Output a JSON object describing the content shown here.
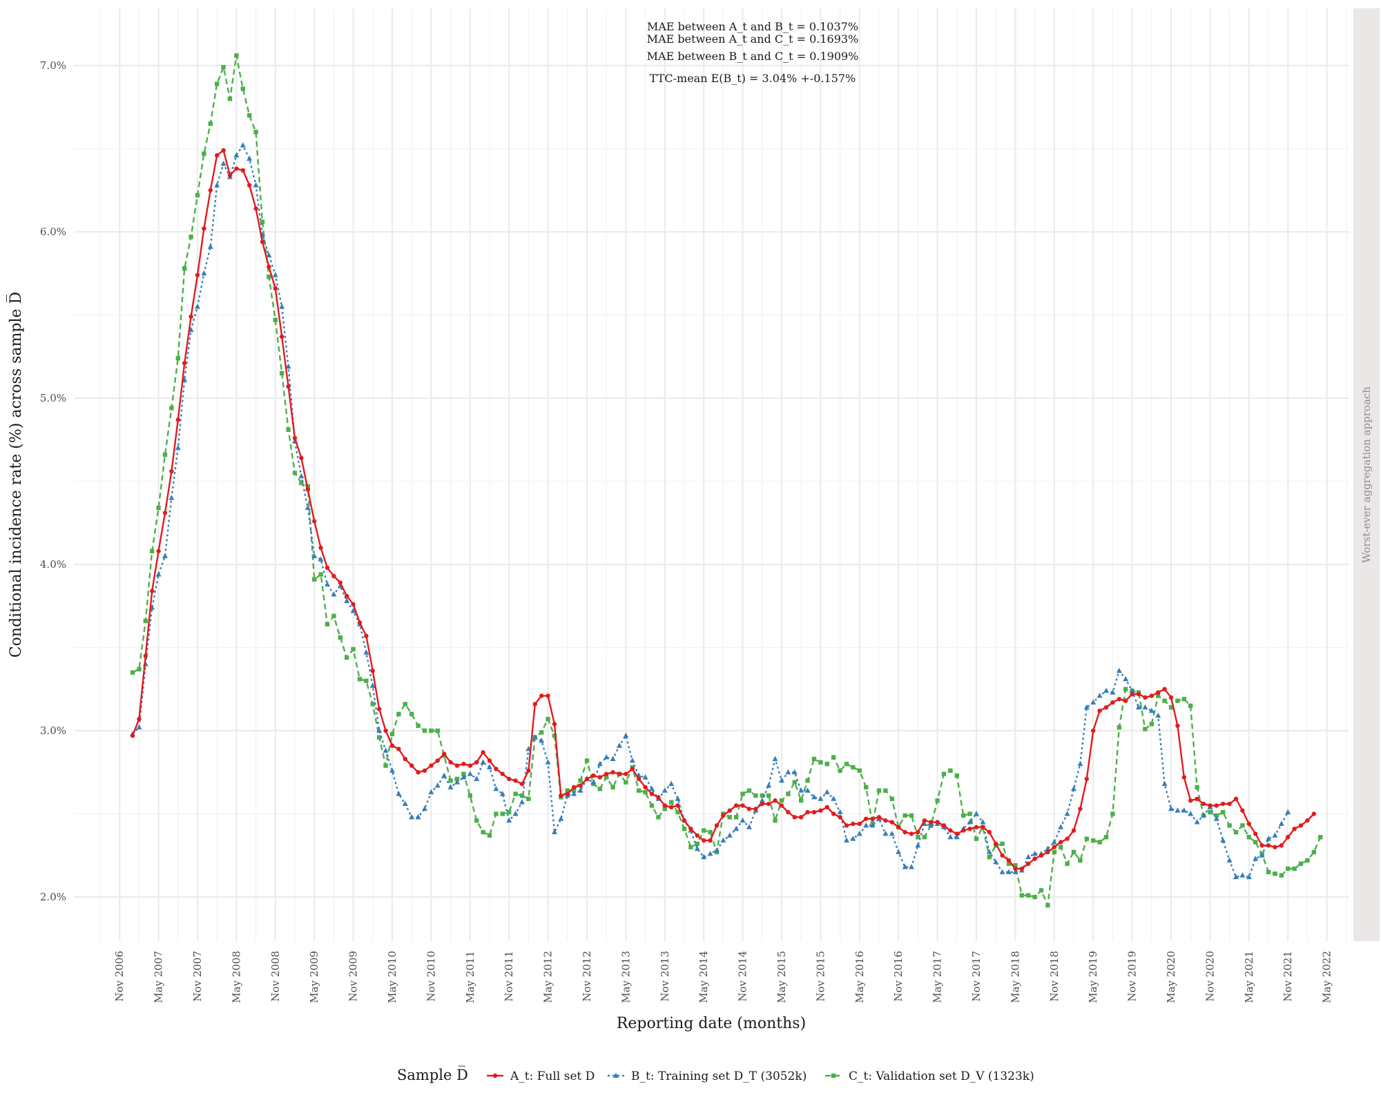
{
  "chart_data": {
    "type": "line",
    "title": "",
    "xlabel": "Reporting date (months)",
    "ylabel": "Conditional incidence rate (%) across sample D̅",
    "x_tick_labels": [
      "Nov 2006",
      "May 2007",
      "Nov 2007",
      "May 2008",
      "Nov 2008",
      "May 2009",
      "Nov 2009",
      "May 2010",
      "Nov 2010",
      "May 2011",
      "Nov 2011",
      "May 2012",
      "Nov 2012",
      "May 2013",
      "Nov 2013",
      "May 2014",
      "Nov 2014",
      "May 2015",
      "Nov 2015",
      "May 2016",
      "Nov 2016",
      "May 2017",
      "Nov 2017",
      "May 2018",
      "Nov 2018",
      "May 2019",
      "Nov 2019",
      "May 2020",
      "Nov 2020",
      "May 2021",
      "Nov 2021",
      "May 2022"
    ],
    "x_start": "2007-01",
    "x_step": "1 month",
    "y_tick_labels": [
      "2.0%",
      "3.0%",
      "4.0%",
      "5.0%",
      "6.0%",
      "7.0%"
    ],
    "ylim": [
      1.7,
      7.3
    ],
    "grid": true,
    "facet_label": "Worst-ever aggregation approach",
    "annotations": [
      "MAE between A_t and B_t = 0.1037%",
      "MAE between A_t and C_t = 0.1693%",
      "MAE between B_t and C_t = 0.1909%",
      "TTC-mean E(B_t) = 3.04% +-0.157%"
    ],
    "legend": {
      "position": "bottom",
      "title": "Sample D̅",
      "entries": [
        "A_t: Full set D",
        "B_t: Training set D_T (3052k)",
        "C_t: Validation set D_V (1323k)"
      ]
    },
    "series": [
      {
        "name": "A_t: Full set D",
        "color": "#e41a1c",
        "marker": "circle",
        "dash": "solid",
        "values": [
          2.97,
          3.07,
          3.45,
          3.84,
          4.08,
          4.31,
          4.56,
          4.87,
          5.21,
          5.49,
          5.74,
          6.02,
          6.25,
          6.46,
          6.49,
          6.34,
          6.38,
          6.37,
          6.28,
          6.14,
          5.94,
          5.79,
          5.66,
          5.37,
          5.07,
          4.76,
          4.64,
          4.45,
          4.26,
          4.1,
          3.98,
          3.93,
          3.89,
          3.81,
          3.76,
          3.65,
          3.57,
          3.36,
          3.13,
          3.0,
          2.91,
          2.89,
          2.83,
          2.79,
          2.75,
          2.76,
          2.79,
          2.82,
          2.86,
          2.81,
          2.79,
          2.8,
          2.79,
          2.81,
          2.87,
          2.82,
          2.77,
          2.74,
          2.71,
          2.7,
          2.68,
          2.76,
          3.16,
          3.21,
          3.21,
          3.04,
          2.61,
          2.62,
          2.66,
          2.67,
          2.71,
          2.73,
          2.72,
          2.74,
          2.75,
          2.74,
          2.74,
          2.77,
          2.71,
          2.66,
          2.62,
          2.6,
          2.55,
          2.54,
          2.55,
          2.46,
          2.41,
          2.37,
          2.34,
          2.34,
          2.43,
          2.49,
          2.52,
          2.55,
          2.55,
          2.53,
          2.53,
          2.56,
          2.56,
          2.58,
          2.55,
          2.51,
          2.48,
          2.48,
          2.51,
          2.51,
          2.52,
          2.54,
          2.5,
          2.48,
          2.43,
          2.44,
          2.44,
          2.47,
          2.47,
          2.48,
          2.46,
          2.45,
          2.42,
          2.39,
          2.38,
          2.39,
          2.46,
          2.45,
          2.45,
          2.43,
          2.4,
          2.38,
          2.4,
          2.41,
          2.42,
          2.42,
          2.39,
          2.32,
          2.25,
          2.22,
          2.17,
          2.17,
          2.2,
          2.23,
          2.25,
          2.27,
          2.3,
          2.33,
          2.35,
          2.4,
          2.53,
          2.71,
          3.0,
          3.12,
          3.14,
          3.17,
          3.19,
          3.18,
          3.22,
          3.22,
          3.2,
          3.21,
          3.23,
          3.25,
          3.2,
          3.03,
          2.72,
          2.58,
          2.59,
          2.56,
          2.55,
          2.55,
          2.56,
          2.56,
          2.59,
          2.52,
          2.44,
          2.38,
          2.31,
          2.31,
          2.3,
          2.31,
          2.36,
          2.41,
          2.43,
          2.46,
          2.5
        ]
      },
      {
        "name": "B_t: Training set D_T (3052k)",
        "color": "#377eb8",
        "marker": "triangle",
        "dash": "dotted",
        "values": [
          2.98,
          3.02,
          3.4,
          3.74,
          3.94,
          4.05,
          4.4,
          4.7,
          5.11,
          5.41,
          5.55,
          5.75,
          5.91,
          6.28,
          6.41,
          6.33,
          6.46,
          6.52,
          6.44,
          6.28,
          5.98,
          5.86,
          5.74,
          5.55,
          5.19,
          4.74,
          4.53,
          4.34,
          4.05,
          4.03,
          3.88,
          3.82,
          3.87,
          3.78,
          3.72,
          3.64,
          3.47,
          3.27,
          3.0,
          2.88,
          2.76,
          2.62,
          2.56,
          2.48,
          2.48,
          2.53,
          2.63,
          2.67,
          2.73,
          2.66,
          2.69,
          2.72,
          2.74,
          2.71,
          2.81,
          2.78,
          2.65,
          2.62,
          2.46,
          2.5,
          2.57,
          2.89,
          2.96,
          2.94,
          2.81,
          2.39,
          2.47,
          2.61,
          2.62,
          2.64,
          2.71,
          2.69,
          2.8,
          2.84,
          2.83,
          2.91,
          2.97,
          2.82,
          2.73,
          2.72,
          2.65,
          2.59,
          2.64,
          2.68,
          2.59,
          2.46,
          2.4,
          2.29,
          2.24,
          2.26,
          2.28,
          2.34,
          2.37,
          2.41,
          2.46,
          2.42,
          2.52,
          2.58,
          2.67,
          2.83,
          2.7,
          2.75,
          2.75,
          2.64,
          2.64,
          2.6,
          2.59,
          2.63,
          2.59,
          2.51,
          2.34,
          2.35,
          2.38,
          2.43,
          2.43,
          2.47,
          2.38,
          2.38,
          2.27,
          2.18,
          2.18,
          2.31,
          2.44,
          2.43,
          2.44,
          2.42,
          2.36,
          2.36,
          2.41,
          2.45,
          2.5,
          2.45,
          2.27,
          2.21,
          2.15,
          2.15,
          2.15,
          2.16,
          2.24,
          2.26,
          2.26,
          2.29,
          2.33,
          2.42,
          2.5,
          2.65,
          2.8,
          3.14,
          3.17,
          3.21,
          3.24,
          3.23,
          3.36,
          3.31,
          3.24,
          3.14,
          3.14,
          3.12,
          3.09,
          2.68,
          2.53,
          2.52,
          2.52,
          2.5,
          2.45,
          2.49,
          2.54,
          2.47,
          2.34,
          2.22,
          2.12,
          2.13,
          2.12,
          2.23,
          2.25,
          2.35,
          2.37,
          2.44,
          2.51
        ]
      },
      {
        "name": "C_t: Validation set D_V (1323k)",
        "color": "#4daf4a",
        "marker": "square",
        "dash": "dashed",
        "values": [
          3.35,
          3.37,
          3.66,
          4.08,
          4.34,
          4.66,
          4.94,
          5.24,
          5.78,
          5.97,
          6.22,
          6.47,
          6.65,
          6.89,
          6.99,
          6.8,
          7.06,
          6.86,
          6.7,
          6.6,
          6.06,
          5.73,
          5.47,
          5.15,
          4.81,
          4.55,
          4.49,
          4.47,
          3.91,
          3.94,
          3.64,
          3.69,
          3.56,
          3.44,
          3.49,
          3.31,
          3.3,
          3.16,
          2.96,
          2.79,
          2.98,
          3.1,
          3.16,
          3.1,
          3.03,
          3.0,
          3.0,
          3.0,
          2.85,
          2.7,
          2.71,
          2.74,
          2.61,
          2.46,
          2.39,
          2.37,
          2.5,
          2.5,
          2.51,
          2.62,
          2.61,
          2.59,
          2.96,
          2.99,
          3.07,
          2.97,
          2.6,
          2.64,
          2.64,
          2.7,
          2.82,
          2.68,
          2.65,
          2.72,
          2.66,
          2.74,
          2.69,
          2.78,
          2.64,
          2.63,
          2.55,
          2.48,
          2.53,
          2.57,
          2.51,
          2.41,
          2.3,
          2.32,
          2.4,
          2.39,
          2.27,
          2.5,
          2.48,
          2.48,
          2.62,
          2.64,
          2.61,
          2.61,
          2.61,
          2.46,
          2.58,
          2.62,
          2.69,
          2.58,
          2.7,
          2.83,
          2.81,
          2.8,
          2.84,
          2.76,
          2.8,
          2.78,
          2.76,
          2.66,
          2.44,
          2.64,
          2.64,
          2.59,
          2.42,
          2.49,
          2.49,
          2.36,
          2.36,
          2.43,
          2.58,
          2.74,
          2.76,
          2.73,
          2.49,
          2.5,
          2.35,
          2.42,
          2.24,
          2.31,
          2.32,
          2.2,
          2.19,
          2.01,
          2.01,
          2.0,
          2.04,
          1.95,
          2.27,
          2.3,
          2.2,
          2.27,
          2.22,
          2.35,
          2.34,
          2.33,
          2.36,
          2.5,
          3.02,
          3.25,
          3.24,
          3.23,
          3.01,
          3.04,
          3.21,
          3.18,
          3.14,
          3.18,
          3.19,
          3.15,
          2.66,
          2.49,
          2.51,
          2.49,
          2.51,
          2.43,
          2.39,
          2.43,
          2.36,
          2.33,
          2.26,
          2.15,
          2.14,
          2.13,
          2.17,
          2.17,
          2.2,
          2.22,
          2.27,
          2.36
        ]
      }
    ]
  }
}
